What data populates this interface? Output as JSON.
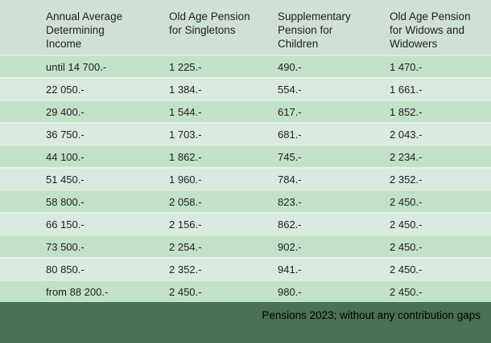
{
  "colors": {
    "header_bg": "#cfe1d7",
    "row_green": "#c3e1c7",
    "row_pale": "#d9eae0",
    "footer_bg": "#4a7152",
    "text": "#1e1e1e",
    "footer_text": "#000000"
  },
  "chart_data": {
    "type": "table",
    "title": "Pensions 2023; without any contribution gaps",
    "columns": [
      "Annual Average Determining Income",
      "Old Age Pension for Singletons",
      "Supplementary Pension for Children",
      "Old Age Pension for Widows and Widowers"
    ],
    "rows": [
      [
        "until 14 700.-",
        "1 225.-",
        "490.-",
        "1 470.-"
      ],
      [
        "22 050.-",
        "1 384.-",
        "554.-",
        "1 661.-"
      ],
      [
        "29 400.-",
        "1 544.-",
        "617.-",
        "1 852.-"
      ],
      [
        "36 750.-",
        "1 703.-",
        "681.-",
        "2 043.-"
      ],
      [
        "44 100.-",
        "1 862.-",
        "745.-",
        "2 234.-"
      ],
      [
        "51 450.-",
        "1 960.-",
        "784.-",
        "2 352.-"
      ],
      [
        "58 800.-",
        "2 058.-",
        "823.-",
        "2 450.-"
      ],
      [
        "66 150.-",
        "2 156.-",
        "862.-",
        "2 450.-"
      ],
      [
        "73 500.-",
        "2 254.-",
        "902.-",
        "2 450.-"
      ],
      [
        "80 850.-",
        "2 352.-",
        "941.-",
        "2 450.-"
      ],
      [
        "from 88 200.-",
        "2 450.-",
        "980.-",
        "2 450.-"
      ]
    ]
  },
  "footer": {
    "caption": "Pensions 2023; without any contribution gaps"
  }
}
